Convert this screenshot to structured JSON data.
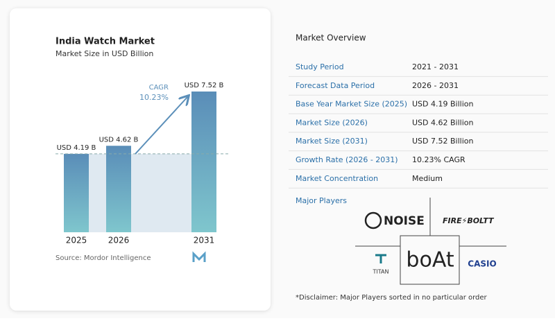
{
  "chart_data": {
    "type": "bar",
    "title": "India Watch Market",
    "subtitle": "Market Size in USD Billion",
    "categories": [
      "2025",
      "2026",
      "2031"
    ],
    "values": [
      4.19,
      4.62,
      7.52
    ],
    "value_labels": [
      "USD 4.19 B",
      "USD 4.62 B",
      "USD 7.52 B"
    ],
    "annotation": {
      "label": "CAGR",
      "value": "10.23%"
    },
    "source": "Source:  Mordor Intelligence"
  },
  "overview": {
    "title": "Market Overview",
    "rows": [
      [
        "Study Period",
        "2021 - 2031"
      ],
      [
        "Forecast Data Period",
        "2026 - 2031"
      ],
      [
        "Base Year Market Size (2025)",
        "USD 4.19 Billion"
      ],
      [
        "Market Size (2026)",
        "USD 4.62 Billion"
      ],
      [
        "Market Size (2031)",
        "USD 7.52 Billion"
      ],
      [
        "Growth Rate (2026 - 2031)",
        "10.23% CAGR"
      ],
      [
        "Market Concentration",
        "Medium"
      ]
    ]
  },
  "players": {
    "title": "Major Players",
    "names": [
      "NOISE",
      "FIRE⚡BOLTT",
      "TITAN",
      "boAt",
      "CASIO"
    ]
  },
  "disclaimer": "*Disclaimer: Major Players sorted in no particular order"
}
